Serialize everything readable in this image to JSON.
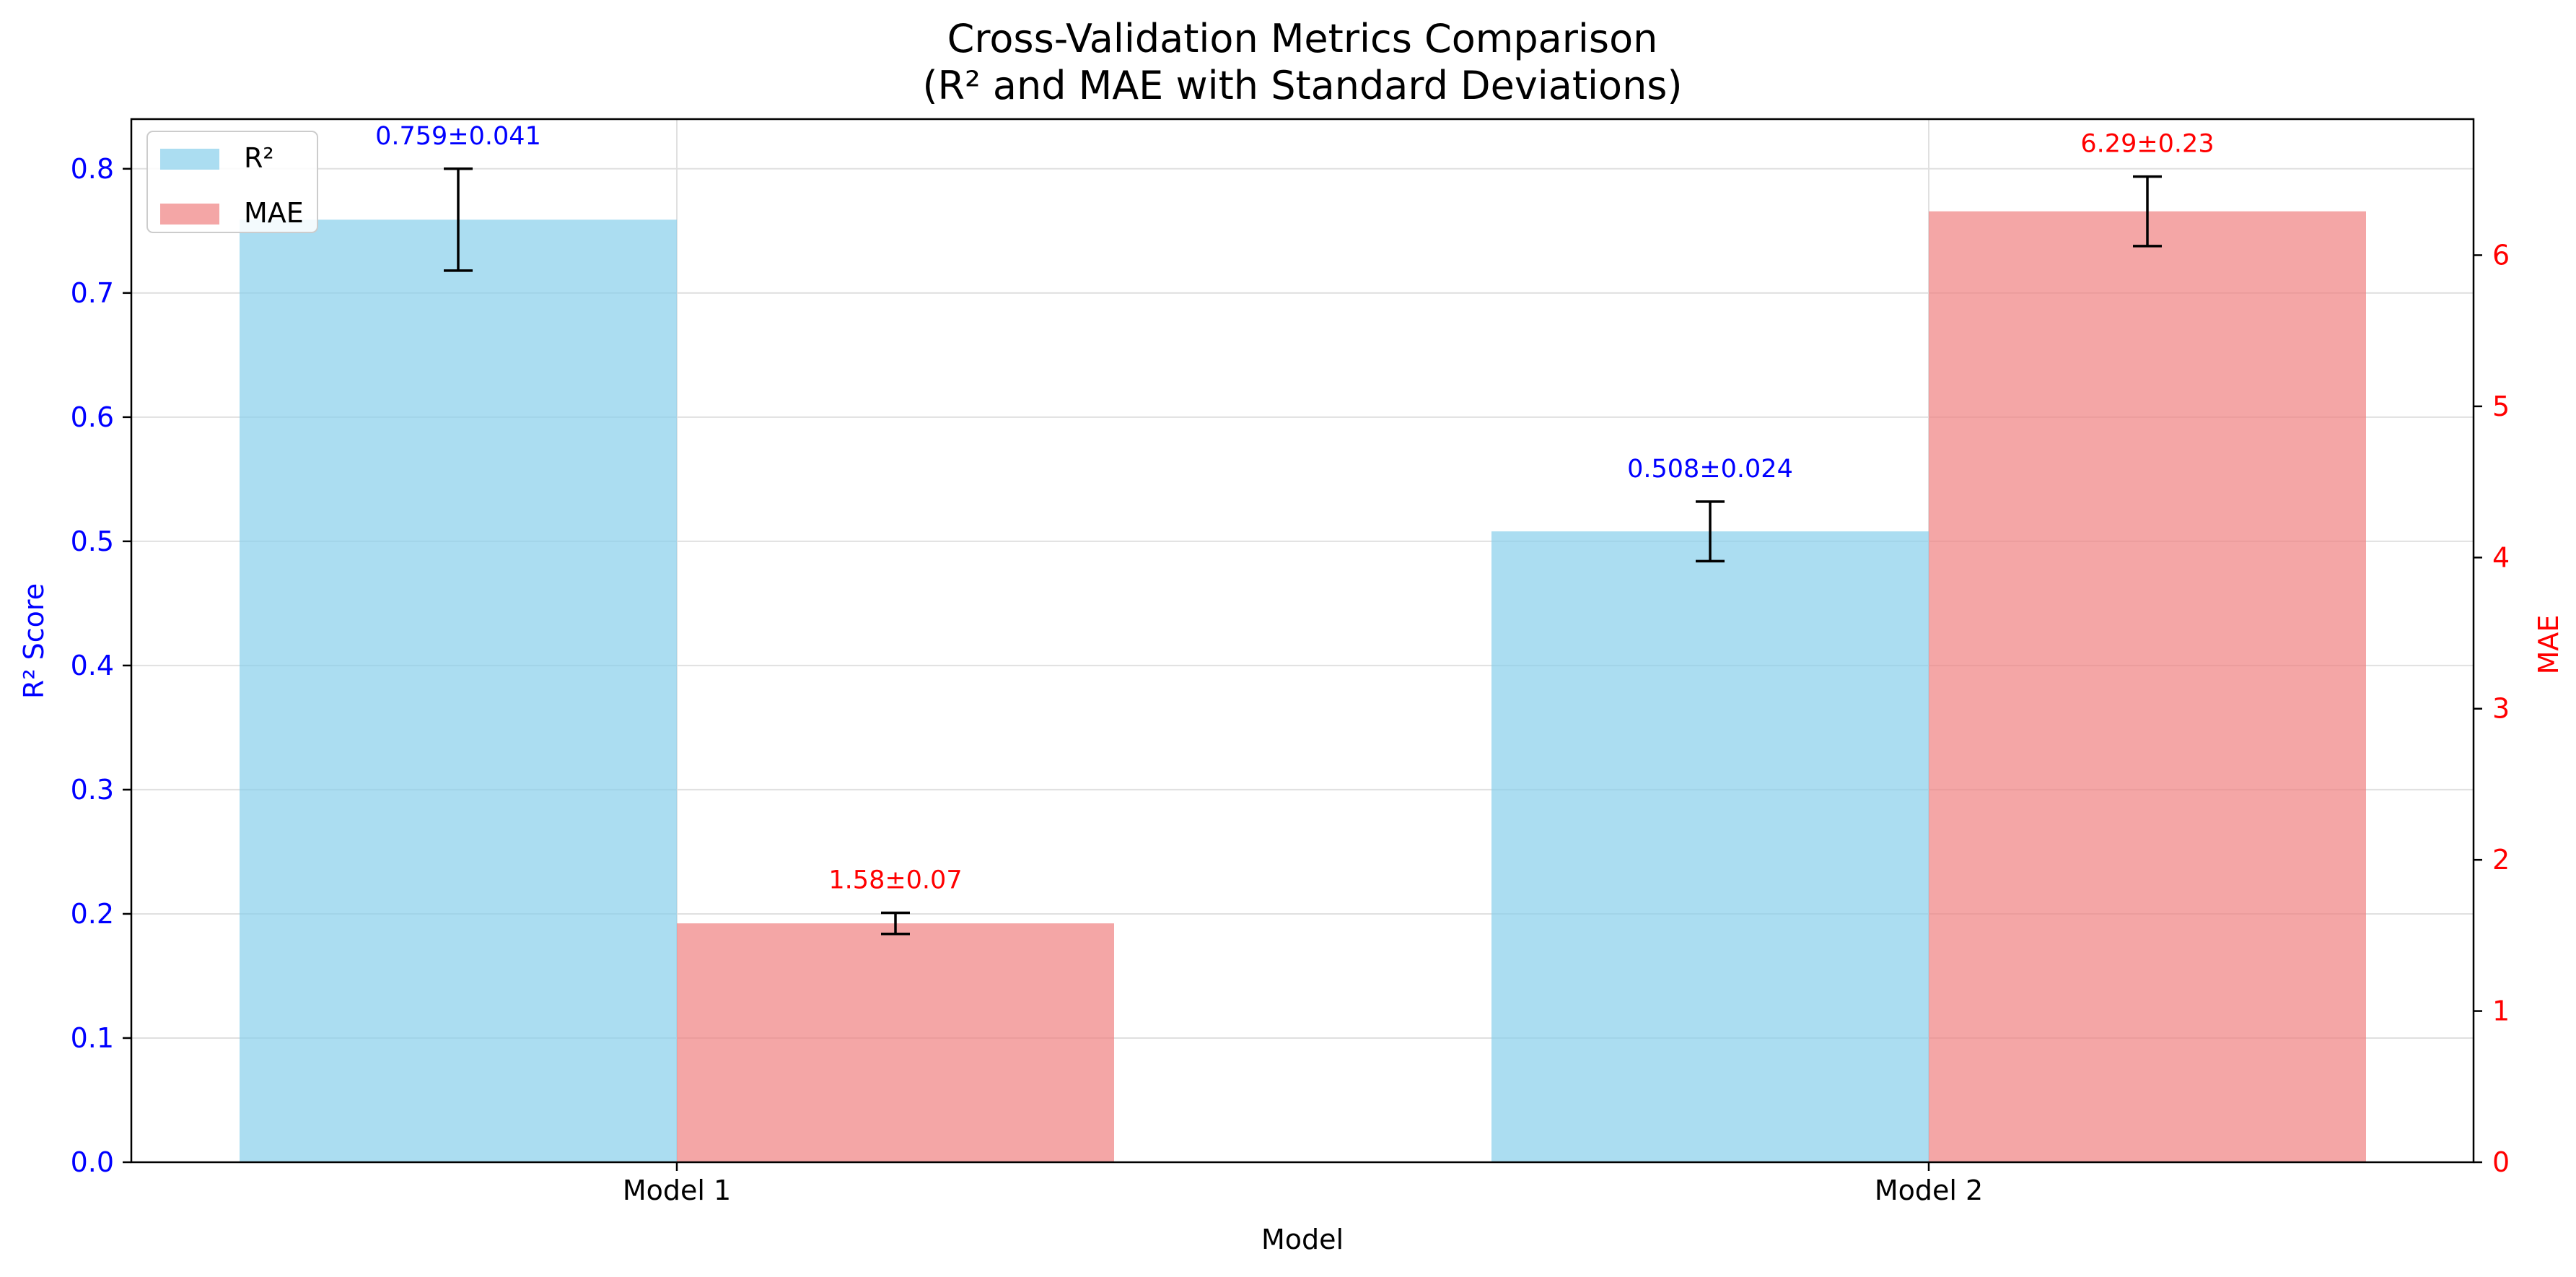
{
  "chart_data": {
    "type": "bar",
    "title": "Cross-Validation Metrics Comparison",
    "subtitle": "(R² and MAE with Standard Deviations)",
    "xlabel": "Model",
    "categories": [
      "Model 1",
      "Model 2"
    ],
    "y_left": {
      "label": "R² Score",
      "ylim": [
        0,
        0.84
      ],
      "ticks": [
        "0.0",
        "0.1",
        "0.2",
        "0.3",
        "0.4",
        "0.5",
        "0.6",
        "0.7",
        "0.8"
      ],
      "color": "#0000ff"
    },
    "y_right": {
      "label": "MAE",
      "ylim": [
        0,
        6.9
      ],
      "ticks": [
        "0",
        "1",
        "2",
        "3",
        "4",
        "5",
        "6"
      ],
      "color": "#ff0000"
    },
    "series": [
      {
        "name": "R²",
        "axis": "left",
        "color": "#87ceeb",
        "values": [
          0.759,
          0.508
        ],
        "errors": [
          0.041,
          0.024
        ],
        "labels": [
          "0.759±0.041",
          "0.508±0.024"
        ]
      },
      {
        "name": "MAE",
        "axis": "right",
        "color": "#f08080",
        "values": [
          1.58,
          6.29
        ],
        "errors": [
          0.07,
          0.23
        ],
        "labels": [
          "1.58±0.07",
          "6.29±0.23"
        ]
      }
    ],
    "grid": true,
    "legend": "top-left"
  }
}
